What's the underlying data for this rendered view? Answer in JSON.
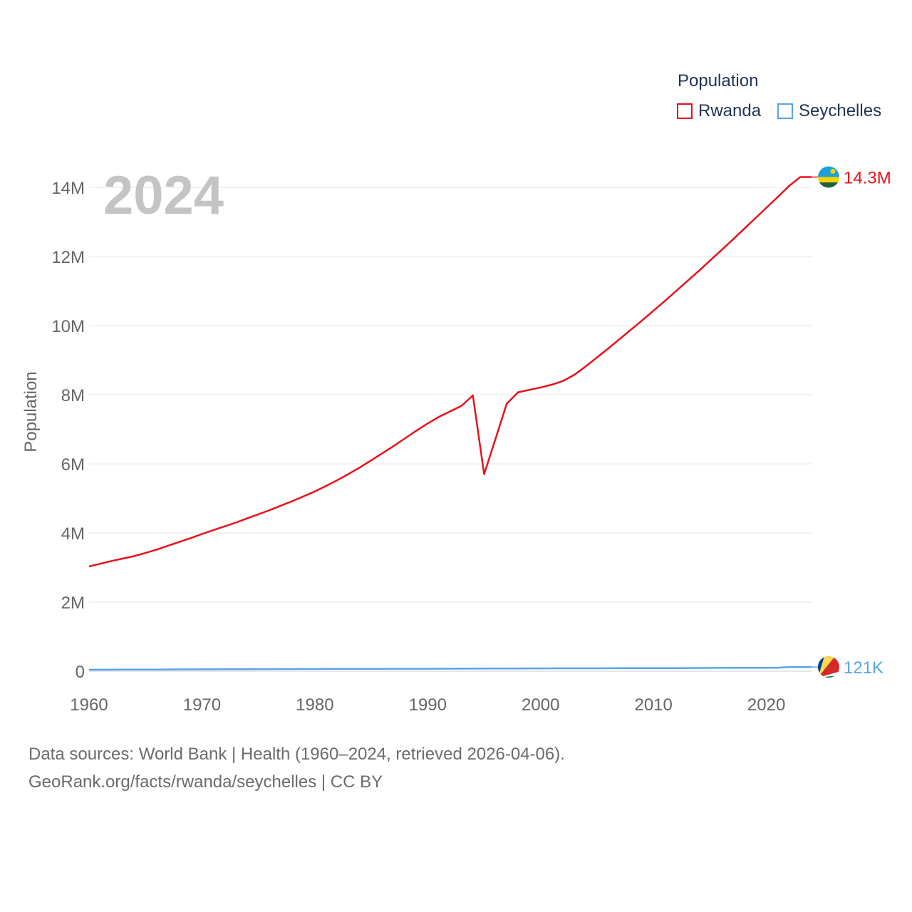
{
  "chart_data": {
    "type": "line",
    "ylabel": "Population",
    "year_label": "2024",
    "legend_title": "Population",
    "x_ticks": [
      "1960",
      "1970",
      "1980",
      "1990",
      "2000",
      "2010",
      "2020"
    ],
    "y_ticks": [
      "0",
      "2M",
      "4M",
      "6M",
      "8M",
      "10M",
      "12M",
      "14M"
    ],
    "xlim": [
      1960,
      2024
    ],
    "ylim": [
      0,
      14000000
    ],
    "x": [
      1960,
      1961,
      1962,
      1963,
      1964,
      1965,
      1966,
      1967,
      1968,
      1969,
      1970,
      1971,
      1972,
      1973,
      1974,
      1975,
      1976,
      1977,
      1978,
      1979,
      1980,
      1981,
      1982,
      1983,
      1984,
      1985,
      1986,
      1987,
      1988,
      1989,
      1990,
      1991,
      1992,
      1993,
      1994,
      1995,
      1996,
      1997,
      1998,
      1999,
      2000,
      2001,
      2002,
      2003,
      2004,
      2005,
      2006,
      2007,
      2008,
      2009,
      2010,
      2011,
      2012,
      2013,
      2014,
      2015,
      2016,
      2017,
      2018,
      2019,
      2020,
      2021,
      2022,
      2023,
      2024
    ],
    "series": [
      {
        "name": "Rwanda",
        "color": "#e8111a",
        "end_label": "14.3M",
        "flag": "rwanda-flag",
        "values": [
          3030000,
          3110000,
          3190000,
          3260000,
          3330000,
          3420000,
          3520000,
          3630000,
          3740000,
          3850000,
          3970000,
          4080000,
          4190000,
          4300000,
          4420000,
          4540000,
          4660000,
          4790000,
          4920000,
          5060000,
          5200000,
          5360000,
          5530000,
          5710000,
          5900000,
          6100000,
          6310000,
          6520000,
          6740000,
          6960000,
          7170000,
          7360000,
          7520000,
          7680000,
          7980000,
          5700000,
          6720000,
          7740000,
          8070000,
          8140000,
          8210000,
          8290000,
          8400000,
          8580000,
          8820000,
          9080000,
          9340000,
          9610000,
          9880000,
          10150000,
          10430000,
          10710000,
          11000000,
          11290000,
          11580000,
          11880000,
          12180000,
          12480000,
          12790000,
          13100000,
          13410000,
          13720000,
          14040000,
          14300000,
          14300000
        ]
      },
      {
        "name": "Seychelles",
        "color": "#5aa3e8",
        "end_label": "121K",
        "flag": "seychelles-flag",
        "values": [
          42000,
          43000,
          44000,
          45000,
          46000,
          47000,
          48000,
          49000,
          51000,
          52000,
          53000,
          54000,
          56000,
          57000,
          58000,
          59000,
          60000,
          61000,
          62000,
          63000,
          64000,
          65000,
          66000,
          67000,
          67000,
          68000,
          69000,
          70000,
          70000,
          71000,
          71000,
          72000,
          73000,
          74000,
          75000,
          76000,
          77000,
          78000,
          79000,
          80000,
          81000,
          82000,
          83000,
          82000,
          82000,
          83000,
          84000,
          86000,
          87000,
          88000,
          89000,
          87000,
          89000,
          90000,
          92000,
          94000,
          95000,
          96000,
          97000,
          98000,
          99000,
          100000,
          119000,
          120000,
          121000
        ]
      }
    ]
  },
  "footer": {
    "sources": "Data sources: World Bank | Health (1960–2024, retrieved 2026-04-06).",
    "credit": "GeoRank.org/facts/rwanda/seychelles | CC BY"
  }
}
